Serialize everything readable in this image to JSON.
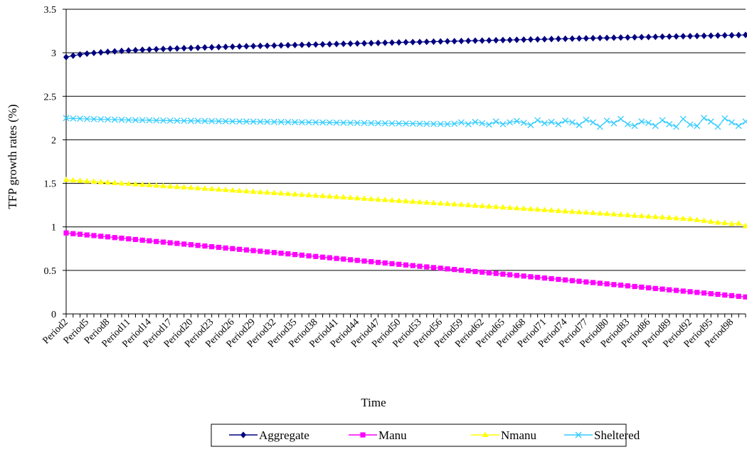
{
  "chart_data": {
    "type": "line",
    "title": "",
    "xlabel": "Time",
    "ylabel": "TFP growth rates (%)",
    "ylim": [
      0,
      3.5
    ],
    "y_ticks": [
      "0",
      "0.5",
      "1",
      "1.5",
      "2",
      "2.5",
      "3",
      "3.5"
    ],
    "grid": "horizontal",
    "legend_position": "bottom-center",
    "x_labels": [
      "Period2",
      "Period5",
      "Period8",
      "Period11",
      "Period14",
      "Period17",
      "Period20",
      "Period23",
      "Period26",
      "Period29",
      "Period32",
      "Period35",
      "Period38",
      "Period41",
      "Period44",
      "Period47",
      "Period50",
      "Period53",
      "Period56",
      "Period59",
      "Period62",
      "Period65",
      "Period68",
      "Period71",
      "Period74",
      "Period77",
      "Period80",
      "Period83",
      "Period86",
      "Period89",
      "Period92",
      "Period95",
      "Period98"
    ],
    "x": [
      2,
      3,
      4,
      5,
      6,
      7,
      8,
      9,
      10,
      11,
      12,
      13,
      14,
      15,
      16,
      17,
      18,
      19,
      20,
      21,
      22,
      23,
      24,
      25,
      26,
      27,
      28,
      29,
      30,
      31,
      32,
      33,
      34,
      35,
      36,
      37,
      38,
      39,
      40,
      41,
      42,
      43,
      44,
      45,
      46,
      47,
      48,
      49,
      50,
      51,
      52,
      53,
      54,
      55,
      56,
      57,
      58,
      59,
      60,
      61,
      62,
      63,
      64,
      65,
      66,
      67,
      68,
      69,
      70,
      71,
      72,
      73,
      74,
      75,
      76,
      77,
      78,
      79,
      80,
      81,
      82,
      83,
      84,
      85,
      86,
      87,
      88,
      89,
      90,
      91,
      92,
      93,
      94,
      95,
      96,
      97,
      98,
      99,
      100
    ],
    "series": [
      {
        "name": "Aggregate",
        "color": "#000080",
        "marker": "diamond",
        "values": [
          2.95,
          2.967,
          2.98,
          2.99,
          2.998,
          3.005,
          3.011,
          3.016,
          3.021,
          3.026,
          3.03,
          3.034,
          3.037,
          3.041,
          3.044,
          3.047,
          3.05,
          3.053,
          3.055,
          3.058,
          3.061,
          3.063,
          3.066,
          3.068,
          3.07,
          3.073,
          3.075,
          3.077,
          3.079,
          3.081,
          3.083,
          3.085,
          3.087,
          3.089,
          3.091,
          3.093,
          3.095,
          3.097,
          3.099,
          3.101,
          3.103,
          3.105,
          3.107,
          3.109,
          3.111,
          3.113,
          3.115,
          3.117,
          3.119,
          3.121,
          3.123,
          3.124,
          3.126,
          3.128,
          3.13,
          3.132,
          3.133,
          3.135,
          3.137,
          3.139,
          3.14,
          3.142,
          3.144,
          3.146,
          3.147,
          3.149,
          3.151,
          3.153,
          3.154,
          3.156,
          3.158,
          3.16,
          3.161,
          3.163,
          3.165,
          3.166,
          3.168,
          3.17,
          3.171,
          3.173,
          3.175,
          3.176,
          3.178,
          3.18,
          3.181,
          3.183,
          3.185,
          3.186,
          3.188,
          3.19,
          3.191,
          3.193,
          3.195,
          3.196,
          3.198,
          3.2,
          3.201,
          3.203,
          3.205
        ]
      },
      {
        "name": "Manu",
        "color": "#FF00FF",
        "marker": "square",
        "values": [
          0.93,
          0.922,
          0.915,
          0.907,
          0.9,
          0.892,
          0.885,
          0.877,
          0.87,
          0.862,
          0.855,
          0.847,
          0.84,
          0.832,
          0.825,
          0.817,
          0.81,
          0.802,
          0.795,
          0.787,
          0.78,
          0.772,
          0.765,
          0.757,
          0.75,
          0.742,
          0.735,
          0.727,
          0.72,
          0.712,
          0.705,
          0.697,
          0.69,
          0.682,
          0.675,
          0.667,
          0.66,
          0.652,
          0.645,
          0.637,
          0.63,
          0.622,
          0.615,
          0.607,
          0.6,
          0.592,
          0.585,
          0.577,
          0.57,
          0.562,
          0.555,
          0.547,
          0.54,
          0.532,
          0.525,
          0.517,
          0.51,
          0.502,
          0.495,
          0.487,
          0.48,
          0.472,
          0.465,
          0.457,
          0.45,
          0.442,
          0.435,
          0.427,
          0.42,
          0.412,
          0.405,
          0.397,
          0.39,
          0.382,
          0.375,
          0.367,
          0.36,
          0.352,
          0.345,
          0.337,
          0.33,
          0.322,
          0.315,
          0.307,
          0.3,
          0.292,
          0.285,
          0.277,
          0.27,
          0.262,
          0.255,
          0.247,
          0.24,
          0.232,
          0.225,
          0.217,
          0.21,
          0.202,
          0.195
        ]
      },
      {
        "name": "Nmanu",
        "color": "#FFFF00",
        "marker": "triangle",
        "values": [
          1.54,
          1.535,
          1.53,
          1.525,
          1.52,
          1.515,
          1.51,
          1.505,
          1.5,
          1.495,
          1.49,
          1.485,
          1.48,
          1.475,
          1.47,
          1.465,
          1.46,
          1.455,
          1.45,
          1.445,
          1.44,
          1.435,
          1.43,
          1.425,
          1.42,
          1.415,
          1.41,
          1.405,
          1.4,
          1.395,
          1.39,
          1.385,
          1.38,
          1.375,
          1.37,
          1.365,
          1.36,
          1.355,
          1.35,
          1.345,
          1.34,
          1.335,
          1.33,
          1.325,
          1.32,
          1.315,
          1.31,
          1.305,
          1.3,
          1.295,
          1.29,
          1.285,
          1.28,
          1.275,
          1.27,
          1.265,
          1.26,
          1.255,
          1.25,
          1.245,
          1.24,
          1.235,
          1.23,
          1.225,
          1.22,
          1.215,
          1.21,
          1.205,
          1.2,
          1.195,
          1.19,
          1.185,
          1.18,
          1.175,
          1.17,
          1.165,
          1.16,
          1.155,
          1.15,
          1.145,
          1.14,
          1.135,
          1.13,
          1.125,
          1.12,
          1.115,
          1.11,
          1.105,
          1.1,
          1.095,
          1.09,
          1.08,
          1.07,
          1.06,
          1.05,
          1.045,
          1.035,
          1.04,
          1.01
        ]
      },
      {
        "name": "Sheltered",
        "color": "#33CCFF",
        "marker": "x",
        "values": [
          2.25,
          2.245,
          2.243,
          2.24,
          2.238,
          2.236,
          2.234,
          2.232,
          2.23,
          2.228,
          2.227,
          2.226,
          2.225,
          2.223,
          2.222,
          2.221,
          2.22,
          2.219,
          2.218,
          2.217,
          2.216,
          2.215,
          2.214,
          2.213,
          2.212,
          2.211,
          2.21,
          2.209,
          2.208,
          2.207,
          2.206,
          2.205,
          2.204,
          2.203,
          2.202,
          2.201,
          2.2,
          2.199,
          2.198,
          2.197,
          2.196,
          2.195,
          2.194,
          2.193,
          2.192,
          2.191,
          2.19,
          2.189,
          2.188,
          2.187,
          2.186,
          2.185,
          2.184,
          2.183,
          2.182,
          2.181,
          2.185,
          2.2,
          2.18,
          2.205,
          2.19,
          2.175,
          2.21,
          2.18,
          2.2,
          2.215,
          2.195,
          2.17,
          2.225,
          2.19,
          2.205,
          2.18,
          2.22,
          2.2,
          2.17,
          2.23,
          2.2,
          2.15,
          2.22,
          2.19,
          2.24,
          2.18,
          2.16,
          2.21,
          2.195,
          2.16,
          2.225,
          2.18,
          2.15,
          2.24,
          2.175,
          2.16,
          2.25,
          2.21,
          2.15,
          2.245,
          2.2,
          2.16,
          2.21
        ]
      }
    ]
  }
}
